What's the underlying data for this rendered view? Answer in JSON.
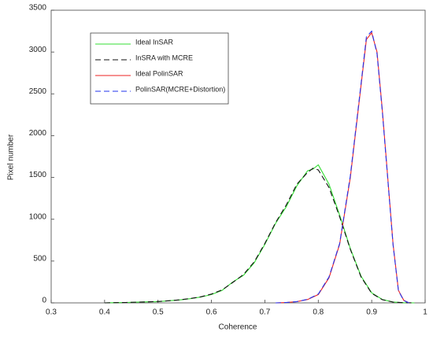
{
  "chart_data": {
    "type": "line",
    "x_label": "Coherence",
    "y_label": "Pixel number",
    "xlim": [
      0.3,
      1
    ],
    "xticks": [
      0.3,
      0.4,
      0.5,
      0.6,
      0.7,
      0.8,
      0.9,
      1
    ],
    "ylim": [
      0,
      3500
    ],
    "yticks": [
      0,
      500,
      1000,
      1500,
      2000,
      2500,
      3000,
      3500
    ],
    "series": [
      {
        "name": "Ideal InSAR",
        "color": "#33dd33",
        "dash": false,
        "x": [
          0.4,
          0.42,
          0.44,
          0.46,
          0.48,
          0.5,
          0.52,
          0.54,
          0.56,
          0.58,
          0.6,
          0.62,
          0.64,
          0.66,
          0.68,
          0.7,
          0.72,
          0.74,
          0.76,
          0.78,
          0.79,
          0.8,
          0.82,
          0.84,
          0.86,
          0.88,
          0.9,
          0.92,
          0.94,
          0.96,
          0.98
        ],
        "values": [
          0,
          3,
          5,
          8,
          12,
          15,
          25,
          35,
          50,
          70,
          100,
          150,
          250,
          330,
          480,
          700,
          950,
          1150,
          1400,
          1580,
          1600,
          1650,
          1420,
          1050,
          650,
          320,
          120,
          40,
          10,
          2,
          0
        ]
      },
      {
        "name": "InSRA with MCRE",
        "color": "#111111",
        "dash": true,
        "x": [
          0.4,
          0.42,
          0.44,
          0.46,
          0.48,
          0.5,
          0.52,
          0.54,
          0.56,
          0.58,
          0.6,
          0.62,
          0.64,
          0.66,
          0.68,
          0.7,
          0.72,
          0.74,
          0.76,
          0.78,
          0.79,
          0.8,
          0.82,
          0.84,
          0.86,
          0.88,
          0.9,
          0.92,
          0.94,
          0.96,
          0.98
        ],
        "values": [
          0,
          3,
          5,
          8,
          12,
          16,
          25,
          36,
          52,
          72,
          105,
          155,
          245,
          340,
          490,
          710,
          960,
          1170,
          1420,
          1560,
          1610,
          1590,
          1380,
          1030,
          640,
          310,
          115,
          38,
          9,
          2,
          0
        ]
      },
      {
        "name": "Ideal PolinSAR",
        "color": "#ee2222",
        "dash": false,
        "x": [
          0.72,
          0.74,
          0.76,
          0.78,
          0.8,
          0.82,
          0.84,
          0.86,
          0.88,
          0.89,
          0.9,
          0.91,
          0.92,
          0.94,
          0.95,
          0.96,
          0.97
        ],
        "values": [
          0,
          5,
          15,
          40,
          100,
          300,
          700,
          1500,
          2600,
          3150,
          3230,
          3000,
          2300,
          700,
          150,
          30,
          0
        ]
      },
      {
        "name": "PolinSAR(MCRE+Distortion)",
        "color": "#2233ee",
        "dash": true,
        "x": [
          0.72,
          0.74,
          0.76,
          0.78,
          0.8,
          0.82,
          0.84,
          0.86,
          0.88,
          0.89,
          0.9,
          0.91,
          0.92,
          0.94,
          0.95,
          0.96,
          0.97
        ],
        "values": [
          0,
          5,
          15,
          42,
          105,
          310,
          710,
          1520,
          2620,
          3180,
          3250,
          2980,
          2280,
          690,
          145,
          28,
          0
        ]
      }
    ]
  }
}
